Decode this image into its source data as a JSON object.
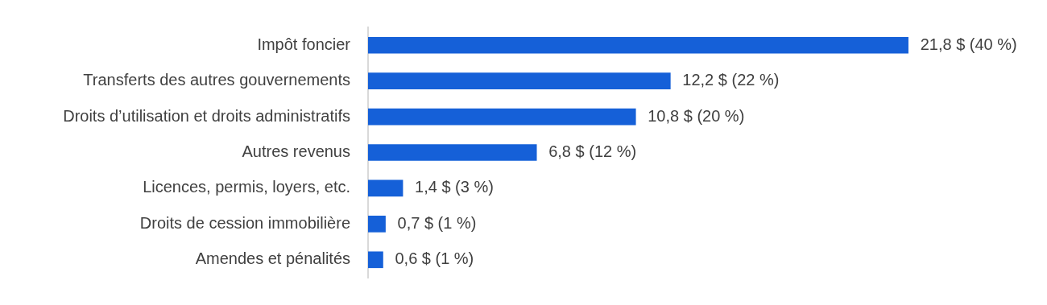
{
  "chart_data": {
    "type": "bar",
    "orientation": "horizontal",
    "categories": [
      "Impôt foncier",
      "Transferts des autres gouvernements",
      "Droits d’utilisation et droits administratifs",
      "Autres revenus",
      "Licences, permis, loyers, etc.",
      "Droits de cession immobilière",
      "Amendes et pénalités"
    ],
    "values": [
      21.8,
      12.2,
      10.8,
      6.8,
      1.4,
      0.7,
      0.6
    ],
    "value_labels": [
      "21,8 $ (40 %)",
      "12,2 $ (22 %)",
      "10,8 $ (20 %)",
      "6,8 $ (12 %)",
      "1,4 $ (3 %)",
      "0,7 $ (1 %)",
      "0,6 $ (1 %)"
    ],
    "color": "#1560d8",
    "tick_labels": "y",
    "grid": false,
    "legend": false
  }
}
